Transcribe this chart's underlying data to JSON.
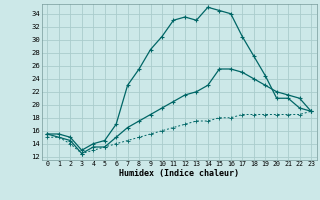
{
  "title": "",
  "xlabel": "Humidex (Indice chaleur)",
  "bg_color": "#cce8e8",
  "grid_color": "#aacccc",
  "line_color": "#006666",
  "xlim": [
    -0.5,
    23.5
  ],
  "ylim": [
    11.5,
    35.5
  ],
  "xticks": [
    0,
    1,
    2,
    3,
    4,
    5,
    6,
    7,
    8,
    9,
    10,
    11,
    12,
    13,
    14,
    15,
    16,
    17,
    18,
    19,
    20,
    21,
    22,
    23
  ],
  "yticks": [
    12,
    14,
    16,
    18,
    20,
    22,
    24,
    26,
    28,
    30,
    32,
    34
  ],
  "line1_x": [
    0,
    1,
    2,
    3,
    4,
    5,
    6,
    7,
    8,
    9,
    10,
    11,
    12,
    13,
    14,
    15,
    16,
    17,
    18,
    19,
    20,
    21,
    22,
    23
  ],
  "line1_y": [
    15.5,
    15.5,
    15.0,
    13.0,
    14.0,
    14.5,
    17.0,
    23.0,
    25.5,
    28.5,
    30.5,
    33.0,
    33.5,
    33.0,
    35.0,
    34.5,
    34.0,
    30.5,
    27.5,
    24.5,
    21.0,
    21.0,
    19.5,
    19.0
  ],
  "line2_x": [
    0,
    2,
    3,
    4,
    5,
    6,
    7,
    8,
    9,
    10,
    11,
    12,
    13,
    14,
    15,
    16,
    17,
    18,
    19,
    20,
    21,
    22,
    23
  ],
  "line2_y": [
    15.5,
    14.5,
    12.5,
    13.5,
    13.5,
    15.0,
    16.5,
    17.5,
    18.5,
    19.5,
    20.5,
    21.5,
    22.0,
    23.0,
    25.5,
    25.5,
    25.0,
    24.0,
    23.0,
    22.0,
    21.5,
    21.0,
    19.0
  ],
  "line3_x": [
    0,
    1,
    2,
    3,
    4,
    5,
    6,
    7,
    8,
    9,
    10,
    11,
    12,
    13,
    14,
    15,
    16,
    17,
    18,
    19,
    20,
    21,
    22,
    23
  ],
  "line3_y": [
    15.0,
    15.0,
    14.0,
    12.5,
    13.0,
    13.5,
    14.0,
    14.5,
    15.0,
    15.5,
    16.0,
    16.5,
    17.0,
    17.5,
    17.5,
    18.0,
    18.0,
    18.5,
    18.5,
    18.5,
    18.5,
    18.5,
    18.5,
    19.0
  ]
}
